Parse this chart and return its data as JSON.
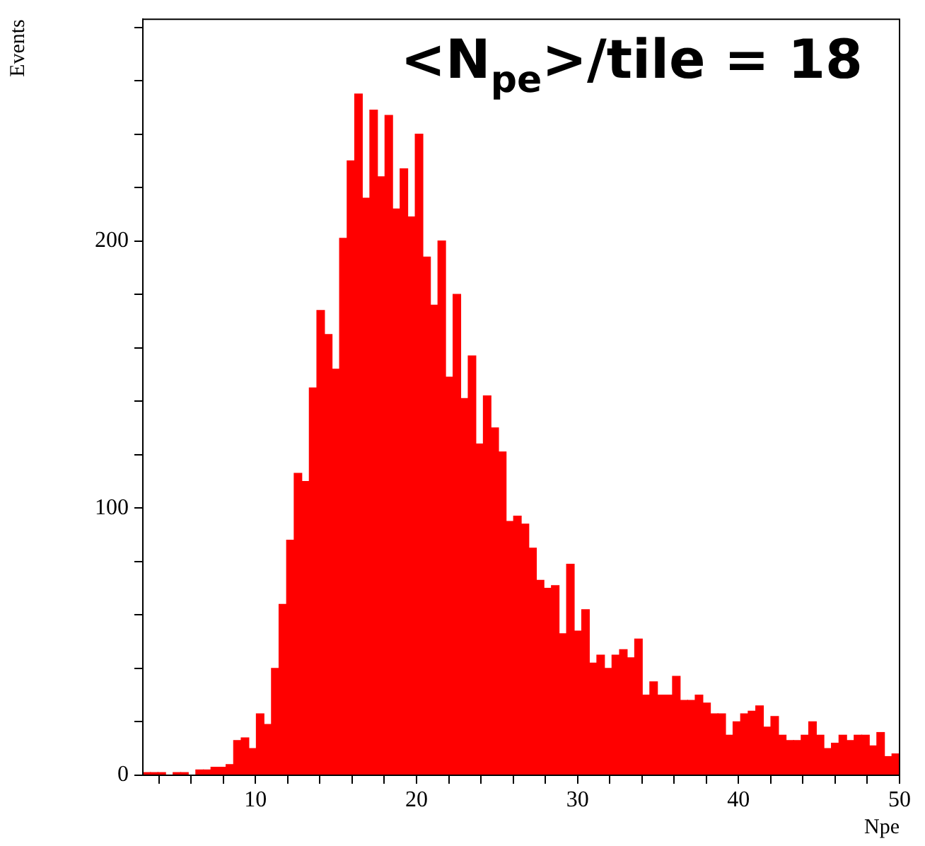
{
  "chart_data": {
    "type": "histogram",
    "annotations": [
      "<N$_{pe}$>/tile = 18"
    ],
    "xlabel": "Npe",
    "ylabel": "Events",
    "color": "#ff0000",
    "bins": [
      3,
      3.47,
      3.94,
      4.41,
      4.88,
      5.35,
      5.82,
      6.29,
      6.76,
      7.23,
      7.7,
      8.17,
      8.64,
      9.11,
      9.58,
      10.05,
      10.52,
      10.99,
      11.46,
      11.93,
      12.4,
      12.87,
      13.34,
      13.81,
      14.28,
      14.75,
      15.22,
      15.69,
      16.16,
      16.63,
      17.1,
      17.57,
      18.04,
      18.51,
      18.98,
      19.45,
      19.92,
      20.39,
      20.86,
      21.33,
      21.8,
      22.27,
      22.74,
      23.21,
      23.68,
      24.15,
      24.62,
      25.09,
      25.56,
      26.03,
      26.5,
      26.97,
      27.44,
      27.91,
      28.38,
      28.85,
      29.32,
      29.79,
      30.26,
      30.73,
      31.2,
      31.67,
      32.14,
      32.61,
      33.08,
      33.55,
      34.02,
      34.49,
      34.96,
      35.43,
      35.9,
      36.37,
      36.84,
      37.31,
      37.78,
      38.25,
      38.72,
      39.19,
      39.66,
      40.13,
      40.6,
      41.07,
      41.54,
      42.01,
      42.48,
      42.95,
      43.42,
      43.89,
      44.36,
      44.83,
      45.3,
      45.77,
      46.24,
      46.71,
      47.18,
      47.65,
      48.12,
      48.59,
      49.06,
      49.53,
      50
    ],
    "values": [
      1,
      1,
      1,
      0,
      1,
      1,
      0,
      2,
      2,
      3,
      3,
      4,
      13,
      14,
      10,
      23,
      19,
      40,
      64,
      88,
      113,
      110,
      145,
      174,
      165,
      152,
      201,
      230,
      255,
      216,
      249,
      224,
      247,
      212,
      227,
      209,
      240,
      194,
      176,
      200,
      149,
      180,
      141,
      157,
      124,
      142,
      130,
      121,
      95,
      97,
      94,
      85,
      73,
      70,
      71,
      53,
      79,
      54,
      62,
      42,
      45,
      40,
      45,
      47,
      44,
      51,
      30,
      35,
      30,
      30,
      37,
      28,
      28,
      30,
      27,
      23,
      23,
      15,
      20,
      23,
      24,
      26,
      18,
      22,
      15,
      13,
      13,
      15,
      20,
      15,
      10,
      12,
      15,
      13,
      15,
      15,
      11,
      16,
      7,
      8
    ],
    "xlim": [
      3,
      50
    ],
    "xticks": [
      {
        "value": 4,
        "label": null
      },
      {
        "value": 6,
        "label": null
      },
      {
        "value": 8,
        "label": null
      },
      10,
      {
        "value": 12,
        "label": null
      },
      {
        "value": 14,
        "label": null
      },
      {
        "value": 16,
        "label": null
      },
      {
        "value": 18,
        "label": null
      },
      20,
      {
        "value": 22,
        "label": null
      },
      {
        "value": 24,
        "label": null
      },
      {
        "value": 26,
        "label": null
      },
      {
        "value": 28,
        "label": null
      },
      30,
      {
        "value": 32,
        "label": null
      },
      {
        "value": 34,
        "label": null
      },
      {
        "value": 36,
        "label": null
      },
      {
        "value": 38,
        "label": null
      },
      40,
      {
        "value": 42,
        "label": null
      },
      {
        "value": 44,
        "label": null
      },
      {
        "value": 46,
        "label": null
      },
      {
        "value": 48,
        "label": null
      },
      50
    ],
    "ylim": [
      0,
      283
    ],
    "yticks": [
      0,
      {
        "value": 20,
        "label": null
      },
      {
        "value": 40,
        "label": null
      },
      {
        "value": 60,
        "label": null
      },
      {
        "value": 80,
        "label": null
      },
      100,
      {
        "value": 120,
        "label": null
      },
      {
        "value": 140,
        "label": null
      },
      {
        "value": 160,
        "label": null
      },
      {
        "value": 180,
        "label": null
      },
      200,
      {
        "value": 220,
        "label": null
      },
      {
        "value": 240,
        "label": null
      },
      {
        "value": 260,
        "label": null
      },
      {
        "value": 280,
        "label": null
      }
    ],
    "grid": false,
    "legend": false
  }
}
